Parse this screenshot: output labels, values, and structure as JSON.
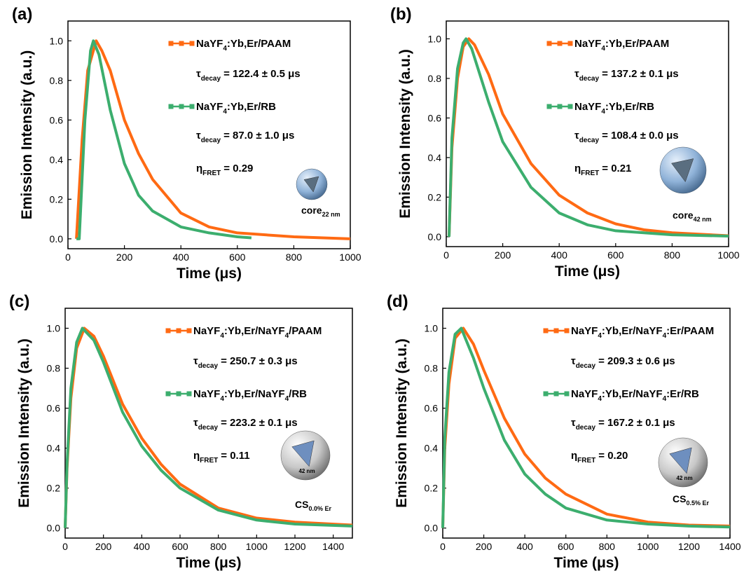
{
  "chart_data": [
    {
      "type": "line",
      "panel_label": "(a)",
      "xlabel": "Time (μs)",
      "ylabel": "Emission Intensity (a.u.)",
      "xlim": [
        0,
        1000
      ],
      "xticks": [
        0,
        200,
        400,
        600,
        800,
        1000
      ],
      "ylim": [
        -0.05,
        1.1
      ],
      "yticks": [
        {
          "value": 0,
          "label": "0.0"
        },
        {
          "value": 0.2,
          "label": "0.2"
        },
        {
          "value": 0.4,
          "label": "0.4"
        },
        {
          "value": 0.6,
          "label": "0.6"
        },
        {
          "value": 0.8,
          "label": "0.8"
        },
        {
          "value": 1,
          "label": "1.0"
        }
      ],
      "series": [
        {
          "name": "NaYF4:Yb,Er/PAAM",
          "color": "#ff6a13",
          "x": [
            30,
            50,
            70,
            100,
            120,
            150,
            200,
            250,
            300,
            400,
            500,
            600,
            800,
            1000
          ],
          "values": [
            0,
            0.5,
            0.85,
            1.0,
            0.95,
            0.85,
            0.6,
            0.43,
            0.3,
            0.13,
            0.06,
            0.03,
            0.01,
            0.0
          ]
        },
        {
          "name": "NaYF4:Yb,Er/RB",
          "color": "#3cae6e",
          "x": [
            30,
            40,
            60,
            80,
            90,
            110,
            150,
            200,
            250,
            300,
            400,
            500,
            600,
            650
          ],
          "values": [
            0,
            0,
            0.6,
            0.95,
            1.0,
            0.93,
            0.65,
            0.38,
            0.22,
            0.14,
            0.06,
            0.03,
            0.01,
            0.005
          ]
        }
      ],
      "annotations": [
        {
          "symbol": "τ",
          "subscript": "decay",
          "text": "= 122.4 ± 0.5 μs"
        },
        {
          "symbol": "τ",
          "subscript": "decay",
          "text": "= 87.0 ± 1.0 μs"
        },
        {
          "symbol": "η",
          "subscript": "FRET",
          "text": "= 0.29"
        }
      ],
      "inset": {
        "label": "core",
        "subscript": "22 nm"
      }
    },
    {
      "type": "line",
      "panel_label": "(b)",
      "xlabel": "Time (μs)",
      "ylabel": "Emission Intensity (a.u.)",
      "xlim": [
        0,
        1000
      ],
      "xticks": [
        0,
        200,
        400,
        600,
        800,
        1000
      ],
      "ylim": [
        -0.05,
        1.09
      ],
      "yticks": [
        {
          "value": 0,
          "label": "0.0"
        },
        {
          "value": 0.2,
          "label": "0.2"
        },
        {
          "value": 0.4,
          "label": "0.4"
        },
        {
          "value": 0.6,
          "label": "0.6"
        },
        {
          "value": 0.8,
          "label": "0.8"
        },
        {
          "value": 1,
          "label": "1.0"
        }
      ],
      "series": [
        {
          "name": "NaYF4:Yb,Er/PAAM",
          "color": "#ff6a13",
          "x": [
            10,
            20,
            40,
            60,
            80,
            100,
            150,
            200,
            300,
            400,
            500,
            600,
            700,
            800,
            1000
          ],
          "values": [
            0,
            0.45,
            0.8,
            0.96,
            1.0,
            0.97,
            0.82,
            0.62,
            0.37,
            0.21,
            0.12,
            0.065,
            0.035,
            0.02,
            0.005
          ]
        },
        {
          "name": "NaYF4:Yb,Er/RB",
          "color": "#3cae6e",
          "x": [
            10,
            20,
            40,
            60,
            70,
            90,
            150,
            200,
            300,
            400,
            500,
            600,
            800,
            1000
          ],
          "values": [
            0,
            0.5,
            0.85,
            0.98,
            1.0,
            0.95,
            0.68,
            0.48,
            0.25,
            0.12,
            0.06,
            0.03,
            0.01,
            0.003
          ]
        }
      ],
      "annotations": [
        {
          "symbol": "τ",
          "subscript": "decay",
          "text": "= 137.2 ± 0.1 μs"
        },
        {
          "symbol": "τ",
          "subscript": "decay",
          "text": "= 108.4 ± 0.0 μs"
        },
        {
          "symbol": "η",
          "subscript": "FRET",
          "text": "= 0.21"
        }
      ],
      "inset": {
        "label": "core",
        "subscript": "42 nm"
      }
    },
    {
      "type": "line",
      "panel_label": "(c)",
      "xlabel": "Time (μs)",
      "ylabel": "Emission Intensity (a.u.)",
      "xlim": [
        0,
        1500
      ],
      "xticks": [
        0,
        200,
        400,
        600,
        800,
        1000,
        1200,
        1400
      ],
      "ylim": [
        -0.05,
        1.1
      ],
      "yticks": [
        {
          "value": 0,
          "label": "0.0"
        },
        {
          "value": 0.2,
          "label": "0.2"
        },
        {
          "value": 0.4,
          "label": "0.4"
        },
        {
          "value": 0.6,
          "label": "0.6"
        },
        {
          "value": 0.8,
          "label": "0.8"
        },
        {
          "value": 1,
          "label": "1.0"
        }
      ],
      "series": [
        {
          "name": "NaYF4:Yb,Er/NaYF4/PAAM",
          "color": "#ff6a13",
          "x": [
            0,
            10,
            30,
            60,
            100,
            150,
            200,
            300,
            400,
            500,
            600,
            800,
            1000,
            1200,
            1500
          ],
          "values": [
            0,
            0.3,
            0.65,
            0.9,
            1.0,
            0.96,
            0.86,
            0.62,
            0.45,
            0.32,
            0.22,
            0.1,
            0.05,
            0.03,
            0.015
          ]
        },
        {
          "name": "NaYF4:Yb,Er/NaYF4/RB",
          "color": "#3cae6e",
          "x": [
            0,
            10,
            30,
            60,
            90,
            150,
            200,
            300,
            400,
            500,
            600,
            800,
            1000,
            1200,
            1500
          ],
          "values": [
            0,
            0.32,
            0.7,
            0.93,
            1.0,
            0.94,
            0.83,
            0.58,
            0.41,
            0.29,
            0.2,
            0.09,
            0.04,
            0.02,
            0.01
          ]
        }
      ],
      "annotations": [
        {
          "symbol": "τ",
          "subscript": "decay",
          "text": "= 250.7 ± 0.3 μs"
        },
        {
          "symbol": "τ",
          "subscript": "decay",
          "text": "= 223.2 ± 0.1 μs"
        },
        {
          "symbol": "η",
          "subscript": "FRET",
          "text": "= 0.11"
        }
      ],
      "inset": {
        "label": "CS",
        "subscript": "0.0% Er",
        "size_label": "42 nm"
      }
    },
    {
      "type": "line",
      "panel_label": "(d)",
      "xlabel": "Time (μs)",
      "ylabel": "Emission Intensity (a.u.)",
      "xlim": [
        0,
        1400
      ],
      "xticks": [
        0,
        200,
        400,
        600,
        800,
        1000,
        1200,
        1400
      ],
      "ylim": [
        -0.05,
        1.1
      ],
      "yticks": [
        {
          "value": 0,
          "label": "0.0"
        },
        {
          "value": 0.2,
          "label": "0.2"
        },
        {
          "value": 0.4,
          "label": "0.4"
        },
        {
          "value": 0.6,
          "label": "0.6"
        },
        {
          "value": 0.8,
          "label": "0.8"
        },
        {
          "value": 1,
          "label": "1.0"
        }
      ],
      "series": [
        {
          "name": "NaYF4:Yb,Er/NaYF4:Er/PAAM",
          "color": "#ff6a13",
          "x": [
            0,
            10,
            30,
            60,
            100,
            150,
            200,
            300,
            400,
            500,
            600,
            800,
            1000,
            1200,
            1400
          ],
          "values": [
            0,
            0.4,
            0.72,
            0.95,
            1.0,
            0.92,
            0.79,
            0.55,
            0.37,
            0.25,
            0.17,
            0.07,
            0.03,
            0.015,
            0.01
          ]
        },
        {
          "name": "NaYF4:Yb,Er/NaYF4:Er/RB",
          "color": "#3cae6e",
          "x": [
            0,
            10,
            30,
            60,
            90,
            150,
            200,
            300,
            400,
            500,
            600,
            800,
            1000,
            1200,
            1400
          ],
          "values": [
            0,
            0.45,
            0.78,
            0.97,
            1.0,
            0.85,
            0.7,
            0.44,
            0.27,
            0.17,
            0.1,
            0.04,
            0.02,
            0.01,
            0.005
          ]
        }
      ],
      "annotations": [
        {
          "symbol": "τ",
          "subscript": "decay",
          "text": "= 209.3 ± 0.6 μs"
        },
        {
          "symbol": "τ",
          "subscript": "decay",
          "text": "= 167.2 ± 0.1 μs"
        },
        {
          "symbol": "η",
          "subscript": "FRET",
          "text": "= 0.20"
        }
      ],
      "inset": {
        "label": "CS",
        "subscript": "0.5% Er",
        "size_label": "42 nm"
      }
    }
  ]
}
